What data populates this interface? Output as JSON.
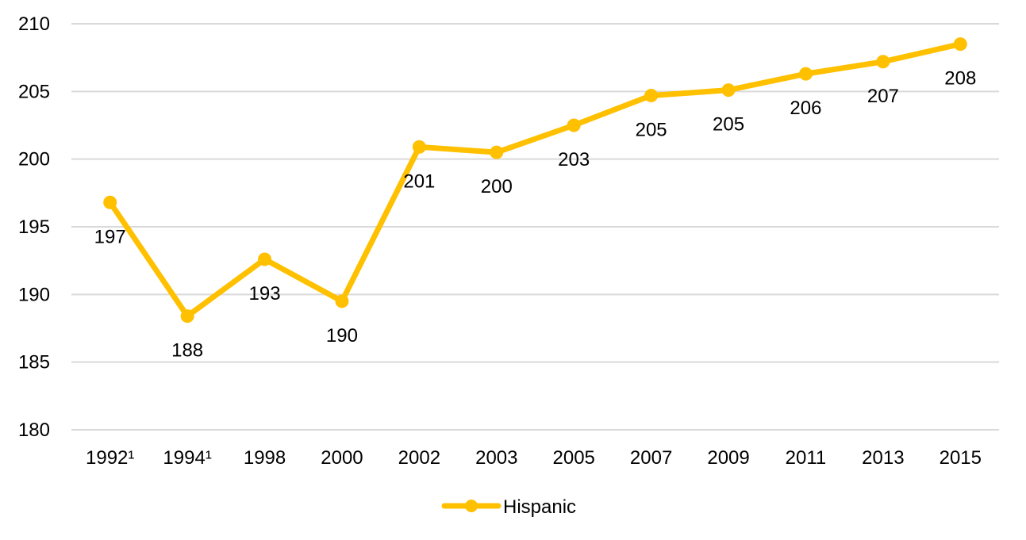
{
  "chart_data": {
    "type": "line",
    "title": "",
    "xlabel": "",
    "ylabel": "",
    "categories": [
      "1992¹",
      "1994¹",
      "1998",
      "2000",
      "2002",
      "2003",
      "2005",
      "2007",
      "2009",
      "2011",
      "2013",
      "2015"
    ],
    "series": [
      {
        "name": "Hispanic",
        "color": "#ffc000",
        "values": [
          196.8,
          188.4,
          192.6,
          189.5,
          200.9,
          200.5,
          202.5,
          204.7,
          205.1,
          206.3,
          207.2,
          208.5
        ],
        "labels": [
          "197",
          "188",
          "193",
          "190",
          "201",
          "200",
          "203",
          "205",
          "205",
          "206",
          "207",
          "208"
        ]
      }
    ],
    "ylim": [
      180,
      210
    ],
    "yticks": [
      180,
      185,
      190,
      195,
      200,
      205,
      210
    ],
    "grid": true,
    "legend": "bottom"
  }
}
